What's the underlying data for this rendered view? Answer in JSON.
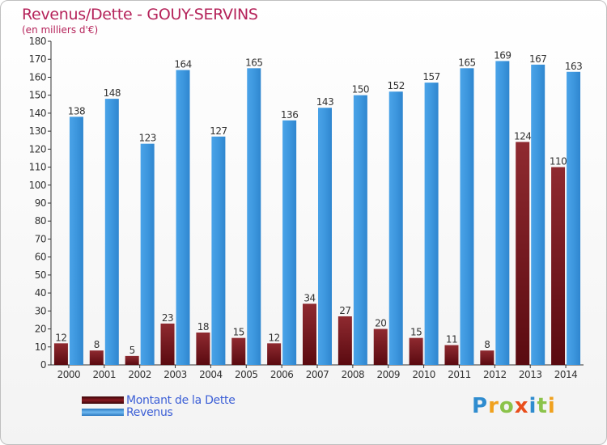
{
  "header": {
    "title": "Revenus/Dette - GOUY-SERVINS",
    "subtitle": "(en milliers d'€)"
  },
  "legend": {
    "items": [
      {
        "label": "Montant de la Dette",
        "color": "#6e0f16"
      },
      {
        "label": "Revenus",
        "color": "#3f9ae2"
      }
    ]
  },
  "logo": {
    "letters": [
      "P",
      "r",
      "o",
      "x",
      "i",
      "t",
      "i"
    ],
    "colors": [
      "#2f8ccf",
      "#f0a11e",
      "#8bc34a",
      "#e94e1b",
      "#2f8ccf",
      "#8bc34a",
      "#f0a11e"
    ]
  },
  "chart_data": {
    "type": "bar",
    "categories": [
      "2000",
      "2001",
      "2002",
      "2003",
      "2004",
      "2005",
      "2006",
      "2007",
      "2008",
      "2009",
      "2010",
      "2011",
      "2012",
      "2013",
      "2014"
    ],
    "series": [
      {
        "name": "Montant de la Dette",
        "color": "#7a141b",
        "values": [
          12,
          8,
          5,
          23,
          18,
          15,
          12,
          34,
          27,
          20,
          15,
          11,
          8,
          124,
          110
        ]
      },
      {
        "name": "Revenus",
        "color": "#3f9ae2",
        "values": [
          138,
          148,
          123,
          164,
          127,
          165,
          136,
          143,
          150,
          152,
          157,
          165,
          169,
          167,
          163
        ]
      }
    ],
    "ylim": [
      0,
      180
    ],
    "yticks": [
      0,
      10,
      20,
      30,
      40,
      50,
      60,
      70,
      80,
      90,
      100,
      110,
      120,
      130,
      140,
      150,
      160,
      170,
      180
    ],
    "grid": false,
    "legend_position": "bottom-left"
  }
}
